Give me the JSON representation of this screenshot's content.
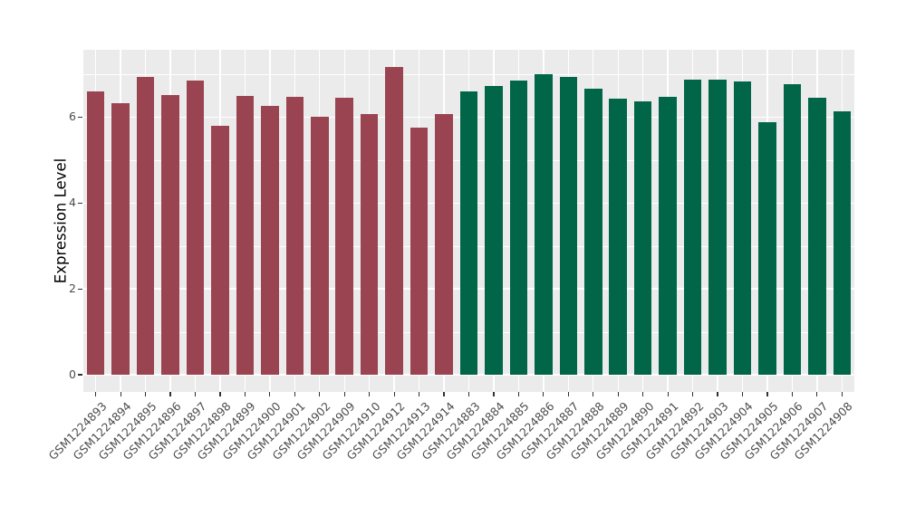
{
  "figure": {
    "background": "#ffffff",
    "panel_background": "#ebebeb",
    "grid_color": "#ffffff",
    "axis_text_color": "#4d4d4d",
    "tick_mark_color": "#333333"
  },
  "chart_data": {
    "type": "bar",
    "title": "",
    "xlabel": "",
    "ylabel": "Expression Level",
    "ylim": [
      0,
      7.57
    ],
    "yticks": [
      0,
      2,
      4,
      6
    ],
    "minor_gridlines": [
      1,
      3,
      5,
      7
    ],
    "grid": "on",
    "legend": "none",
    "categories": [
      "GSM1224893",
      "GSM1224894",
      "GSM1224895",
      "GSM1224896",
      "GSM1224897",
      "GSM1224898",
      "GSM1224899",
      "GSM1224900",
      "GSM1224901",
      "GSM1224902",
      "GSM1224909",
      "GSM1224910",
      "GSM1224912",
      "GSM1224913",
      "GSM1224914",
      "GSM1224883",
      "GSM1224884",
      "GSM1224885",
      "GSM1224886",
      "GSM1224887",
      "GSM1224888",
      "GSM1224889",
      "GSM1224890",
      "GSM1224891",
      "GSM1224892",
      "GSM1224903",
      "GSM1224904",
      "GSM1224905",
      "GSM1224906",
      "GSM1224907",
      "GSM1224908"
    ],
    "values": [
      6.6,
      6.32,
      6.94,
      6.51,
      6.85,
      5.79,
      6.49,
      6.25,
      6.47,
      6.01,
      6.45,
      6.07,
      7.17,
      5.75,
      6.06,
      6.6,
      6.72,
      6.84,
      7.0,
      6.93,
      6.67,
      6.42,
      6.36,
      6.47,
      6.87,
      6.88,
      6.83,
      5.87,
      6.76,
      6.45,
      6.13
    ],
    "color_groups": [
      {
        "color": "#9b4451",
        "start_index": 0,
        "end_index": 14
      },
      {
        "color": "#006647",
        "start_index": 15,
        "end_index": 30
      }
    ]
  }
}
